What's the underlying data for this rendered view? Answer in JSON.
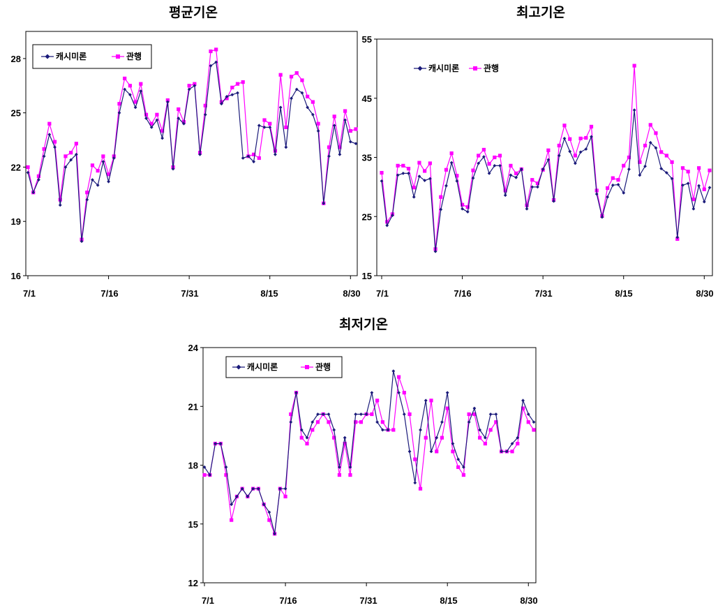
{
  "chart_data": [
    {
      "type": "line",
      "title": "평균기온",
      "xlabel": "",
      "ylabel": "",
      "ylim": [
        16,
        29.5
      ],
      "yticks": [
        16,
        19,
        22,
        25,
        28
      ],
      "xticks": [
        "7/1",
        "7/16",
        "7/31",
        "8/15",
        "8/30"
      ],
      "legend": "top-left",
      "colors": [
        "#1a1a7a",
        "#ff00ff"
      ],
      "series": [
        {
          "name": "캐시미론",
          "values": [
            21.7,
            20.6,
            21.3,
            22.6,
            23.8,
            23.1,
            19.9,
            22.0,
            22.4,
            22.7,
            17.9,
            20.2,
            21.3,
            21.0,
            22.3,
            21.2,
            22.5,
            25.0,
            26.3,
            26.0,
            25.3,
            26.2,
            24.7,
            24.2,
            24.6,
            23.6,
            25.6,
            21.9,
            24.7,
            24.4,
            26.3,
            26.5,
            22.7,
            24.9,
            27.6,
            27.8,
            25.5,
            25.9,
            26.0,
            26.1,
            22.5,
            22.6,
            22.3,
            24.3,
            24.2,
            24.2,
            22.7,
            25.3,
            23.1,
            25.8,
            26.3,
            26.1,
            25.3,
            24.9,
            24.0,
            20.0,
            22.6,
            24.3,
            22.7,
            24.6,
            23.4,
            23.3
          ]
        },
        {
          "name": "관행",
          "values": [
            22.0,
            20.6,
            21.5,
            23.0,
            24.4,
            23.4,
            20.2,
            22.6,
            22.8,
            23.3,
            18.0,
            20.6,
            22.1,
            21.8,
            22.6,
            21.6,
            22.6,
            25.5,
            26.9,
            26.5,
            25.6,
            26.6,
            24.9,
            24.4,
            24.9,
            24.0,
            25.7,
            22.0,
            25.2,
            24.5,
            26.5,
            26.6,
            22.8,
            25.4,
            28.4,
            28.5,
            25.6,
            25.8,
            26.4,
            26.6,
            26.7,
            22.6,
            22.7,
            22.5,
            24.6,
            24.4,
            22.9,
            27.1,
            24.2,
            27.0,
            27.2,
            26.8,
            25.9,
            25.6,
            24.4,
            20.0,
            23.1,
            24.8,
            23.1,
            25.1,
            24.0,
            24.1
          ]
        }
      ]
    },
    {
      "type": "line",
      "title": "최고기온",
      "xlabel": "",
      "ylabel": "",
      "ylim": [
        15,
        55
      ],
      "yticks": [
        15,
        25,
        35,
        45,
        55
      ],
      "xticks": [
        "7/1",
        "7/16",
        "7/31",
        "8/15",
        "8/30"
      ],
      "legend": "top-left",
      "colors": [
        "#1a1a7a",
        "#ff00ff"
      ],
      "series": [
        {
          "name": "캐시미론",
          "values": [
            31.0,
            23.5,
            25.2,
            32.0,
            32.3,
            32.3,
            28.3,
            31.8,
            31.1,
            31.4,
            19.1,
            26.2,
            30.2,
            34.1,
            31.0,
            26.3,
            25.8,
            31.5,
            34.0,
            35.1,
            32.3,
            33.6,
            33.6,
            28.6,
            32.0,
            31.6,
            33.0,
            26.3,
            30.0,
            30.0,
            33.0,
            34.6,
            27.6,
            35.3,
            38.2,
            36.0,
            34.0,
            35.9,
            36.4,
            38.5,
            28.8,
            24.9,
            28.3,
            30.3,
            30.4,
            29.0,
            33.0,
            43.0,
            32.0,
            33.5,
            37.5,
            36.6,
            33.1,
            32.4,
            31.4,
            21.5,
            30.3,
            30.6,
            26.3,
            30.2,
            27.5,
            29.9
          ]
        },
        {
          "name": "관행",
          "values": [
            32.4,
            24.1,
            25.4,
            33.6,
            33.6,
            33.1,
            29.9,
            34.1,
            32.7,
            34.0,
            19.5,
            28.3,
            32.9,
            35.7,
            31.9,
            27.0,
            26.6,
            32.8,
            35.3,
            36.3,
            33.9,
            35.0,
            35.3,
            29.4,
            33.6,
            32.3,
            33.0,
            26.9,
            31.2,
            30.6,
            32.9,
            36.2,
            27.8,
            37.0,
            40.4,
            38.1,
            35.3,
            38.2,
            38.3,
            40.2,
            29.4,
            25.1,
            29.8,
            31.5,
            31.2,
            33.6,
            35.0,
            50.5,
            34.2,
            37.0,
            40.5,
            39.1,
            35.9,
            35.3,
            34.2,
            21.2,
            33.2,
            32.6,
            27.9,
            33.2,
            29.6,
            32.8
          ]
        }
      ]
    },
    {
      "type": "line",
      "title": "최저기온",
      "xlabel": "",
      "ylabel": "",
      "ylim": [
        12,
        24
      ],
      "yticks": [
        12,
        15,
        18,
        21,
        24
      ],
      "xticks": [
        "7/1",
        "7/16",
        "7/31",
        "8/15",
        "8/30"
      ],
      "legend": "top-left",
      "colors": [
        "#1a1a7a",
        "#ff00ff"
      ],
      "series": [
        {
          "name": "캐시미론",
          "values": [
            17.9,
            17.5,
            19.1,
            19.1,
            17.9,
            16.0,
            16.4,
            16.8,
            16.4,
            16.8,
            16.8,
            16.0,
            15.6,
            14.5,
            16.8,
            16.8,
            20.2,
            21.7,
            19.8,
            19.4,
            20.2,
            20.6,
            20.6,
            20.6,
            19.8,
            17.9,
            19.4,
            17.9,
            20.6,
            20.6,
            20.6,
            21.7,
            20.2,
            19.8,
            19.8,
            22.8,
            21.7,
            20.6,
            18.7,
            17.1,
            19.8,
            21.3,
            18.7,
            19.4,
            20.2,
            21.7,
            19.1,
            18.3,
            17.9,
            20.2,
            20.9,
            19.8,
            19.4,
            20.6,
            20.6,
            18.7,
            18.7,
            19.1,
            19.4,
            21.3,
            20.6,
            20.2
          ]
        },
        {
          "name": "관행",
          "values": [
            17.5,
            17.5,
            19.1,
            19.1,
            17.5,
            15.2,
            16.4,
            16.8,
            16.4,
            16.8,
            16.8,
            16.0,
            15.2,
            14.5,
            16.8,
            16.4,
            20.6,
            21.7,
            19.4,
            19.1,
            19.8,
            20.2,
            20.6,
            20.2,
            19.4,
            17.5,
            19.1,
            17.5,
            20.2,
            20.2,
            20.6,
            20.6,
            21.3,
            20.2,
            19.8,
            19.8,
            22.5,
            21.7,
            20.6,
            18.3,
            16.8,
            19.4,
            21.3,
            18.7,
            19.4,
            20.9,
            18.7,
            17.9,
            17.5,
            20.6,
            20.6,
            19.4,
            19.1,
            19.8,
            20.2,
            18.7,
            18.7,
            18.7,
            19.1,
            20.9,
            20.2,
            19.8
          ]
        }
      ]
    }
  ]
}
